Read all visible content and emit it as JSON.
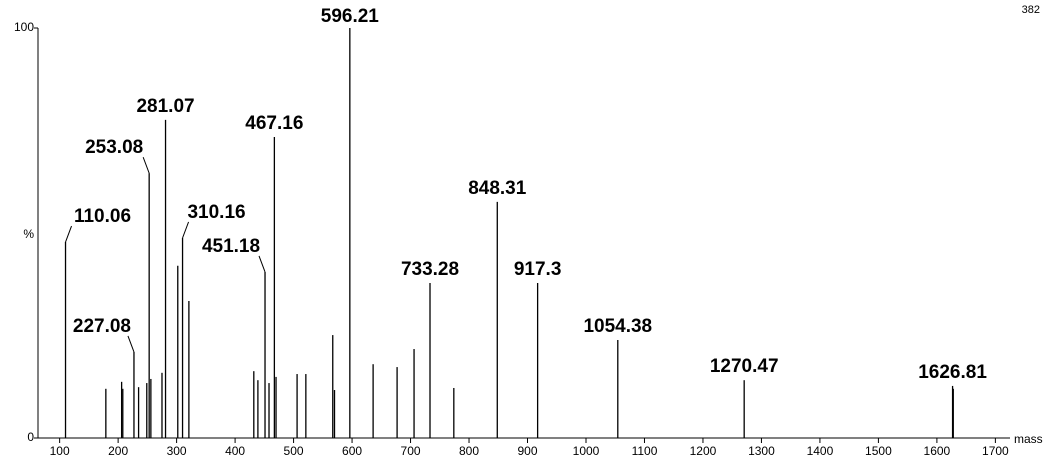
{
  "chart_data": {
    "type": "spectrum",
    "annotation": "382",
    "xlabel": "mass",
    "ylabel": "%",
    "xlim": [
      63,
      1725
    ],
    "ylim": [
      0,
      100
    ],
    "xticks": [
      100,
      200,
      300,
      400,
      500,
      600,
      700,
      800,
      900,
      1000,
      1100,
      1200,
      1300,
      1400,
      1500,
      1600,
      1700
    ],
    "yticks": [
      0,
      100
    ],
    "color": "#000000",
    "labeled": {
      "x": [
        110.06,
        227.08,
        253.08,
        281.07,
        310.16,
        451.18,
        467.16,
        596.21,
        733.28,
        848.31,
        917.3,
        1054.38,
        1270.47,
        1626.81
      ],
      "values": [
        47.8,
        21,
        64.6,
        77.6,
        48.8,
        40.5,
        73.4,
        100,
        37.8,
        57.6,
        37.8,
        23.9,
        14.1,
        12.7
      ]
    },
    "unlabeled": {
      "x": [
        179,
        206,
        208,
        235,
        249,
        256,
        275,
        302,
        321,
        432,
        439,
        458,
        470,
        506,
        521,
        567,
        570,
        636,
        677,
        706,
        774,
        1628
      ],
      "values": [
        12,
        13.7,
        12,
        12.4,
        13.4,
        14.4,
        15.9,
        42,
        33.4,
        16.3,
        14.1,
        13.4,
        14.9,
        15.6,
        15.6,
        25.1,
        11.7,
        18,
        17.3,
        21.7,
        12.2,
        12
      ]
    }
  }
}
